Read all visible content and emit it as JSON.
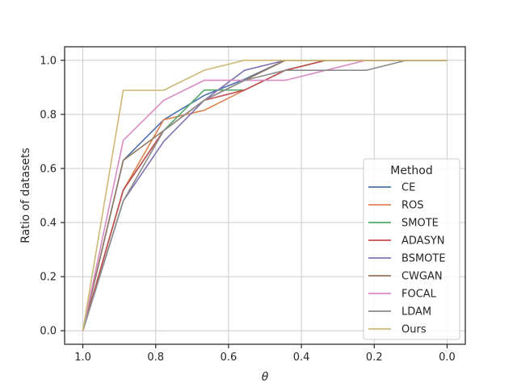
{
  "chart_data": {
    "type": "line",
    "title": "",
    "xlabel": "θ",
    "ylabel": "Ratio of datasets",
    "xlim": [
      1.05,
      -0.05
    ],
    "ylim": [
      -0.05,
      1.05
    ],
    "x_inverted": true,
    "x_ticks": [
      1.0,
      0.8,
      0.6,
      0.4,
      0.2,
      0.0
    ],
    "x_tick_labels": [
      "1.0",
      "0.8",
      "0.6",
      "0.4",
      "0.2",
      "0.0"
    ],
    "y_ticks": [
      0.0,
      0.2,
      0.4,
      0.6,
      0.8,
      1.0
    ],
    "y_tick_labels": [
      "0.0",
      "0.2",
      "0.4",
      "0.6",
      "0.8",
      "1.0"
    ],
    "grid": true,
    "legend": {
      "title": "Method",
      "placement": "lower right"
    },
    "x": [
      1.0,
      0.889,
      0.778,
      0.667,
      0.556,
      0.444,
      0.333,
      0.222,
      0.111,
      0.0
    ],
    "series": [
      {
        "name": "CE",
        "color": "#4c72b0",
        "values": [
          0.0,
          0.63,
          0.78,
          0.87,
          0.93,
          1.0,
          1.0,
          1.0,
          1.0,
          1.0
        ]
      },
      {
        "name": "ROS",
        "color": "#dd8452",
        "values": [
          0.0,
          0.52,
          0.78,
          0.815,
          0.89,
          0.963,
          1.0,
          1.0,
          1.0,
          1.0
        ]
      },
      {
        "name": "SMOTE",
        "color": "#55a868",
        "values": [
          0.0,
          0.52,
          0.74,
          0.89,
          0.89,
          0.963,
          1.0,
          1.0,
          1.0,
          1.0
        ]
      },
      {
        "name": "ADASYN",
        "color": "#c44e52",
        "values": [
          0.0,
          0.52,
          0.74,
          0.852,
          0.89,
          0.963,
          1.0,
          1.0,
          1.0,
          1.0
        ]
      },
      {
        "name": "BSMOTE",
        "color": "#8172b3",
        "values": [
          0.0,
          0.48,
          0.7,
          0.852,
          0.963,
          1.0,
          1.0,
          1.0,
          1.0,
          1.0
        ]
      },
      {
        "name": "CWGAN",
        "color": "#937860",
        "values": [
          0.0,
          0.63,
          0.74,
          0.852,
          0.926,
          1.0,
          1.0,
          1.0,
          1.0,
          1.0
        ]
      },
      {
        "name": "FOCAL",
        "color": "#da8bc3",
        "values": [
          0.0,
          0.704,
          0.852,
          0.926,
          0.926,
          0.926,
          0.963,
          1.0,
          1.0,
          1.0
        ]
      },
      {
        "name": "LDAM",
        "color": "#8c8c8c",
        "values": [
          0.0,
          0.48,
          0.74,
          0.852,
          0.926,
          0.963,
          0.963,
          0.963,
          1.0,
          1.0
        ]
      },
      {
        "name": "Ours",
        "color": "#ccb974",
        "values": [
          0.0,
          0.889,
          0.889,
          0.963,
          1.0,
          1.0,
          1.0,
          1.0,
          1.0,
          1.0
        ]
      }
    ]
  }
}
